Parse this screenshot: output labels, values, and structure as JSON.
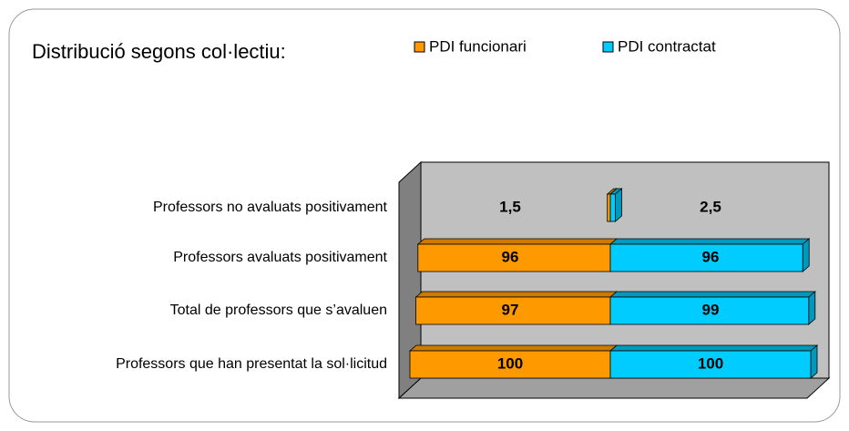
{
  "chart_data": {
    "type": "bar",
    "orientation": "horizontal",
    "title": "Distribució segons col·lectiu:",
    "categories": [
      "Professors no avaluats positivament",
      "Professors avaluats positivament",
      "Total de professors que s’avaluen",
      "Professors que han presentat la sol·licitud"
    ],
    "series": [
      {
        "name": "PDI funcionari",
        "color": "#ff9900",
        "values": [
          1.5,
          96,
          97,
          100
        ],
        "value_labels": [
          "1,5",
          "96",
          "97",
          "100"
        ]
      },
      {
        "name": "PDI contractat",
        "color": "#00ccff",
        "values": [
          2.5,
          96,
          99,
          100
        ],
        "value_labels": [
          "2,5",
          "96",
          "99",
          "100"
        ]
      }
    ]
  }
}
